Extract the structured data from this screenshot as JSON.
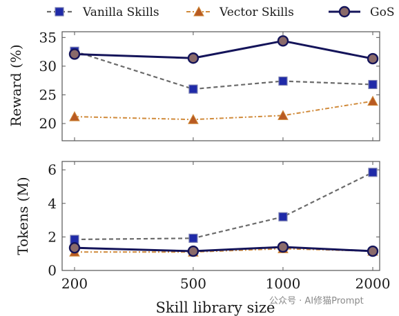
{
  "watermark": "公众号 · AI修猫Prompt",
  "colors": {
    "vanilla_line": "#6b6b6b",
    "vanilla_marker": "#1f2aa8",
    "vector_line": "#d08a3a",
    "vector_marker": "#b85a22",
    "gos_line": "#14145a",
    "gos_marker": "#8a6a6a",
    "axis": "#555555"
  },
  "chart_data": {
    "type": "line",
    "x": [
      200,
      500,
      1000,
      2000
    ],
    "xlabel": "Skill library size",
    "x_scale": "log",
    "x_ticks": [
      "200",
      "500",
      "1000",
      "2000"
    ],
    "legend": {
      "placement": "top",
      "entries": [
        "Vanilla Skills",
        "Vector Skills",
        "GoS"
      ]
    },
    "panels": [
      {
        "ylabel": "Reward (%)",
        "ylim": [
          17,
          36
        ],
        "y_ticks": [
          "20",
          "25",
          "30",
          "35"
        ],
        "y_tick_values": [
          20,
          25,
          30,
          35
        ],
        "grid": false,
        "series": [
          {
            "name": "Vanilla Skills",
            "values": [
              32.6,
              26.0,
              27.4,
              26.8
            ]
          },
          {
            "name": "Vector Skills",
            "values": [
              21.2,
              20.7,
              21.4,
              23.9
            ]
          },
          {
            "name": "GoS",
            "values": [
              32.1,
              31.4,
              34.4,
              31.3
            ]
          }
        ]
      },
      {
        "ylabel": "Tokens (M)",
        "ylim": [
          0,
          6.5
        ],
        "y_ticks": [
          "0",
          "2",
          "4",
          "6"
        ],
        "y_tick_values": [
          0,
          2,
          4,
          6
        ],
        "grid": false,
        "series": [
          {
            "name": "Vanilla Skills",
            "values": [
              1.85,
              1.92,
              3.2,
              5.85
            ]
          },
          {
            "name": "Vector Skills",
            "values": [
              1.1,
              1.1,
              1.3,
              1.15
            ]
          },
          {
            "name": "GoS",
            "values": [
              1.35,
              1.15,
              1.4,
              1.15
            ]
          }
        ]
      }
    ]
  }
}
